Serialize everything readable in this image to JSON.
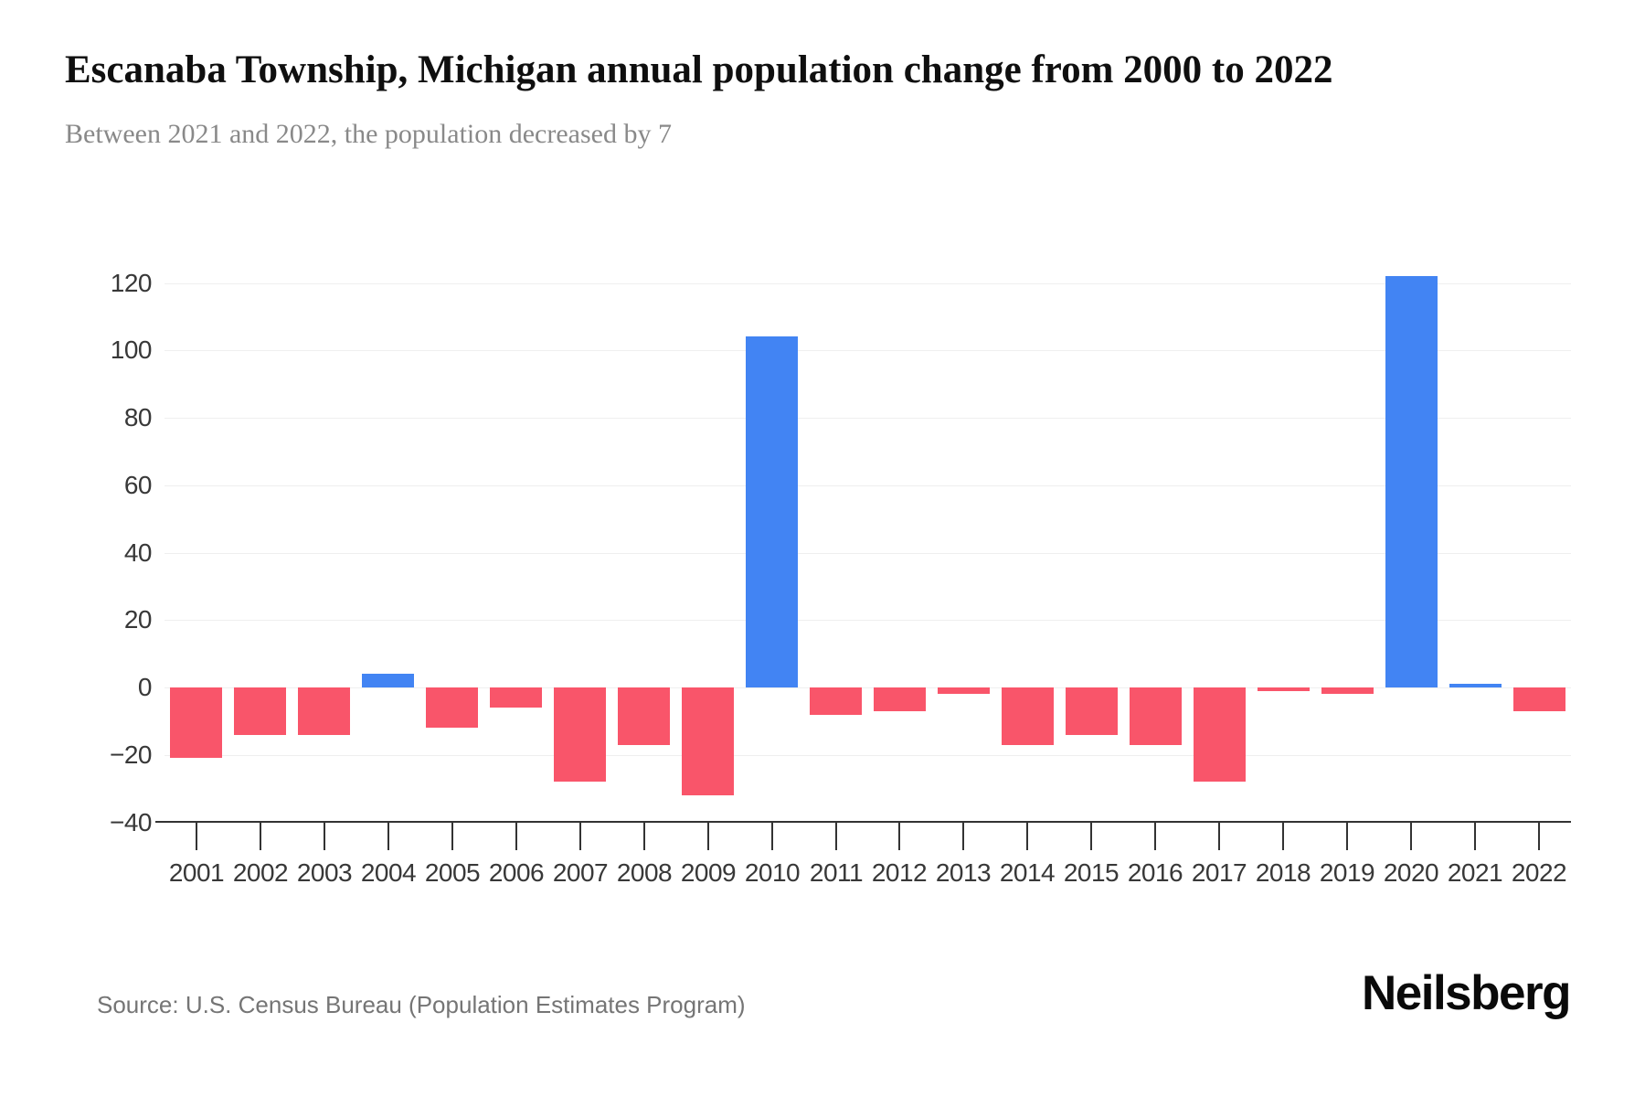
{
  "title": "Escanaba Township, Michigan annual population change from 2000 to 2022",
  "subtitle": "Between 2021 and 2022, the population decreased by 7",
  "source": "Source: U.S. Census Bureau (Population Estimates Program)",
  "logo": "Neilsberg",
  "colors": {
    "positive_bar": "#4284F3",
    "negative_bar": "#F9556A",
    "title_text": "#0F0F0F",
    "subtitle_text": "#898989",
    "axis_text": "#383838",
    "gridline": "#EFEFEF",
    "axis_line": "#333333",
    "source_text": "#757575",
    "background": "#FFFFFF"
  },
  "chart_data": {
    "type": "bar",
    "title": "Escanaba Township, Michigan annual population change from 2000 to 2022",
    "subtitle": "Between 2021 and 2022, the population decreased by 7",
    "categories": [
      "2001",
      "2002",
      "2003",
      "2004",
      "2005",
      "2006",
      "2007",
      "2008",
      "2009",
      "2010",
      "2011",
      "2012",
      "2013",
      "2014",
      "2015",
      "2016",
      "2017",
      "2018",
      "2019",
      "2020",
      "2021",
      "2022"
    ],
    "values": [
      -21,
      -14,
      -14,
      4,
      -12,
      -6,
      -28,
      -17,
      -32,
      104,
      -8,
      -7,
      -2,
      -17,
      -14,
      -17,
      -28,
      -1,
      -2,
      122,
      1,
      -7
    ],
    "series_name": "Annual population change",
    "xlabel": "",
    "ylabel": "",
    "ylim": [
      -40,
      130
    ],
    "yticks": [
      120,
      100,
      80,
      60,
      40,
      20,
      0,
      -20,
      -40
    ],
    "grid": true,
    "legend_position": "none",
    "positive_color": "#4284F3",
    "negative_color": "#F9556A"
  }
}
